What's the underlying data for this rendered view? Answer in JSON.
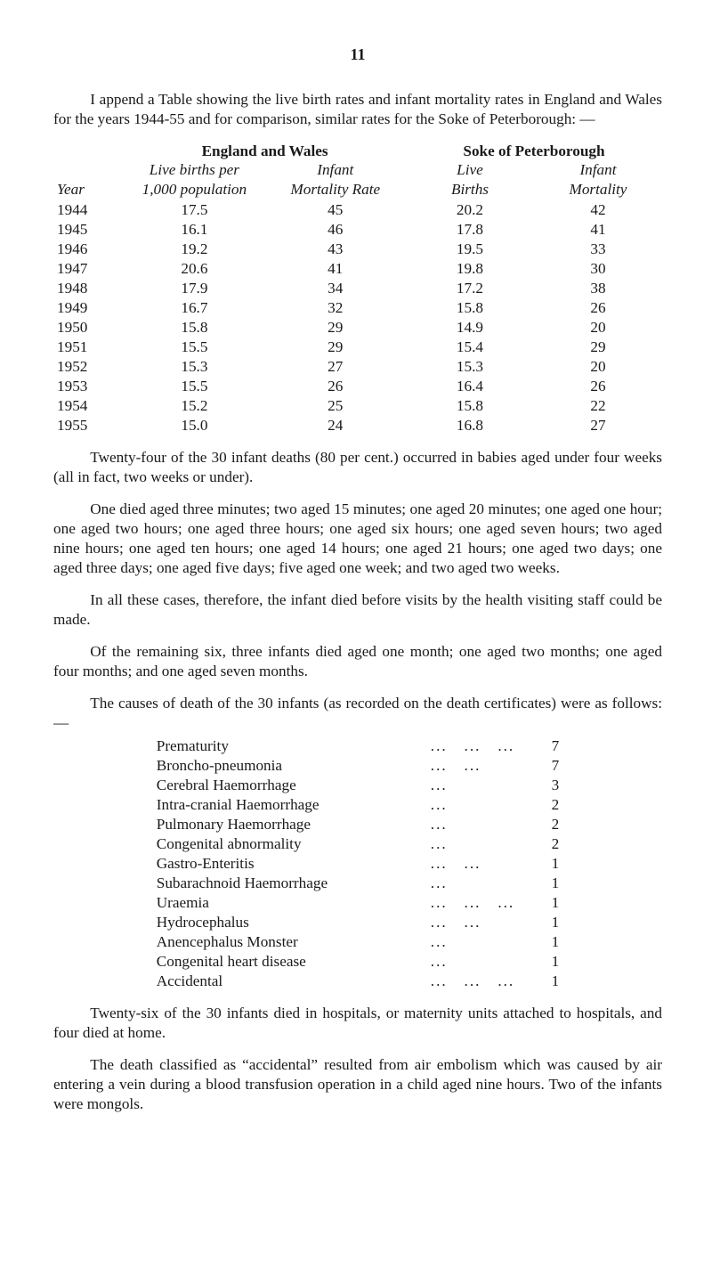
{
  "page_number": "11",
  "intro_para": "I append a Table showing the live birth rates and infant mortality rates in England and Wales for the years 1944-55 and for comparison, similar rates for the Soke of Peterborough: —",
  "table1": {
    "super_head_ew": "England and Wales",
    "super_head_sp": "Soke of Peterborough",
    "head_year": "Year",
    "head_ew_lbp_l1": "Live births per",
    "head_ew_lbp_l2": "1,000 population",
    "head_ew_imr_l1": "Infant",
    "head_ew_imr_l2": "Mortality Rate",
    "head_sp_lb_l1": "Live",
    "head_sp_lb_l2": "Births",
    "head_sp_im_l1": "Infant",
    "head_sp_im_l2": "Mortality",
    "rows": [
      {
        "year": "1944",
        "lbp": "17.5",
        "imr": "45",
        "slb": "20.2",
        "sim": "42"
      },
      {
        "year": "1945",
        "lbp": "16.1",
        "imr": "46",
        "slb": "17.8",
        "sim": "41"
      },
      {
        "year": "1946",
        "lbp": "19.2",
        "imr": "43",
        "slb": "19.5",
        "sim": "33"
      },
      {
        "year": "1947",
        "lbp": "20.6",
        "imr": "41",
        "slb": "19.8",
        "sim": "30"
      },
      {
        "year": "1948",
        "lbp": "17.9",
        "imr": "34",
        "slb": "17.2",
        "sim": "38"
      },
      {
        "year": "1949",
        "lbp": "16.7",
        "imr": "32",
        "slb": "15.8",
        "sim": "26"
      },
      {
        "year": "1950",
        "lbp": "15.8",
        "imr": "29",
        "slb": "14.9",
        "sim": "20"
      },
      {
        "year": "1951",
        "lbp": "15.5",
        "imr": "29",
        "slb": "15.4",
        "sim": "29"
      },
      {
        "year": "1952",
        "lbp": "15.3",
        "imr": "27",
        "slb": "15.3",
        "sim": "20"
      },
      {
        "year": "1953",
        "lbp": "15.5",
        "imr": "26",
        "slb": "16.4",
        "sim": "26"
      },
      {
        "year": "1954",
        "lbp": "15.2",
        "imr": "25",
        "slb": "15.8",
        "sim": "22"
      },
      {
        "year": "1955",
        "lbp": "15.0",
        "imr": "24",
        "slb": "16.8",
        "sim": "27"
      }
    ]
  },
  "para2": "Twenty-four of the 30 infant deaths (80 per cent.) occurred in babies aged under four weeks (all in fact, two weeks or under).",
  "para3": "One died aged three minutes; two aged 15 minutes; one aged 20 minutes; one aged one hour; one aged two hours; one aged three hours; one aged six hours; one aged seven hours; two aged nine hours; one aged ten hours; one aged 14 hours; one aged 21 hours; one aged two days; one aged three days; one aged five days; five aged one week; and two aged two weeks.",
  "para4": "In all these cases, therefore, the infant died before visits by the health visiting staff could be made.",
  "para5": "Of the remaining six, three infants died aged one month; one aged two months; one aged four months; and one aged seven months.",
  "para6": "The causes of death of the 30 infants (as recorded on the death certificates) were as follows: —",
  "causes": [
    {
      "label": "Prematurity",
      "dots": "...   ...   ...",
      "val": "7"
    },
    {
      "label": "Broncho-pneumonia",
      "dots": "...   ...",
      "val": "7"
    },
    {
      "label": "Cerebral Haemorrhage",
      "dots": "...",
      "val": "3"
    },
    {
      "label": "Intra-cranial Haemorrhage",
      "dots": "...",
      "val": "2"
    },
    {
      "label": "Pulmonary Haemorrhage",
      "dots": "...",
      "val": "2"
    },
    {
      "label": "Congenital abnormality",
      "dots": "...",
      "val": "2"
    },
    {
      "label": "Gastro-Enteritis",
      "dots": "...   ...",
      "val": "1"
    },
    {
      "label": "Subarachnoid Haemorrhage",
      "dots": "...",
      "val": "1"
    },
    {
      "label": "Uraemia",
      "dots": "...   ...   ...",
      "val": "1"
    },
    {
      "label": "Hydrocephalus",
      "dots": "...   ...",
      "val": "1"
    },
    {
      "label": "Anencephalus Monster",
      "dots": "...",
      "val": "1"
    },
    {
      "label": "Congenital heart disease",
      "dots": "...",
      "val": "1"
    },
    {
      "label": "Accidental",
      "dots": "...   ...   ...",
      "val": "1"
    }
  ],
  "para7": "Twenty-six of the 30 infants died in hospitals, or maternity units attached to hospitals, and four died at home.",
  "para8": "The death classified as “accidental” resulted from air embolism which was caused by air entering a vein during a blood transfusion operation in a child aged nine hours. Two of the infants were mongols."
}
